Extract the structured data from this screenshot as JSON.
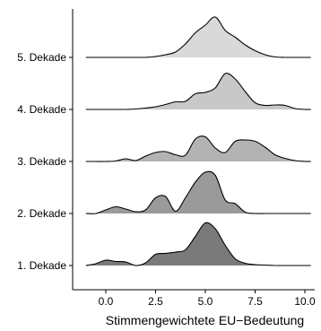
{
  "chart_data": {
    "type": "ridgeline",
    "xlabel": "Stimmengewichtete EU−Bedeutung",
    "ylabel": "",
    "xlim": [
      -1.0,
      10.5
    ],
    "x_ticks": [
      0.0,
      2.5,
      5.0,
      7.5,
      10.0
    ],
    "x_tick_labels": [
      "0.0",
      "2.5",
      "5.0",
      "7.5",
      "10.0"
    ],
    "categories": [
      "1. Dekade",
      "2. Dekade",
      "3. Dekade",
      "4. Dekade",
      "5. Dekade"
    ],
    "series": [
      {
        "name": "1. Dekade",
        "fill": "#7a7a7a",
        "x": [
          -1.0,
          -0.5,
          0.0,
          0.5,
          1.0,
          1.5,
          2.0,
          2.5,
          3.0,
          3.5,
          4.0,
          4.5,
          5.0,
          5.5,
          6.0,
          6.5,
          7.0,
          7.5,
          8.0,
          8.5
        ],
        "density": [
          0.0,
          0.04,
          0.12,
          0.09,
          0.08,
          0.0,
          0.06,
          0.25,
          0.27,
          0.3,
          0.35,
          0.65,
          0.95,
          0.82,
          0.45,
          0.15,
          0.05,
          0.02,
          0.01,
          0.0
        ]
      },
      {
        "name": "2. Dekade",
        "fill": "#9a9a9a",
        "x": [
          -1.0,
          -0.5,
          0.0,
          0.5,
          1.0,
          1.5,
          2.0,
          2.5,
          3.0,
          3.5,
          4.0,
          4.5,
          5.0,
          5.5,
          6.0,
          6.5,
          7.0,
          7.5,
          8.0,
          8.5
        ],
        "density": [
          0.0,
          0.0,
          0.08,
          0.15,
          0.1,
          0.04,
          0.08,
          0.35,
          0.38,
          0.05,
          0.35,
          0.7,
          0.92,
          0.85,
          0.3,
          0.22,
          0.03,
          0.0,
          0.0,
          0.0
        ]
      },
      {
        "name": "3. Dekade",
        "fill": "#b3b3b3",
        "x": [
          -1.0,
          -0.5,
          0.0,
          0.5,
          1.0,
          1.5,
          2.0,
          2.5,
          3.0,
          3.5,
          4.0,
          4.5,
          5.0,
          5.5,
          6.0,
          6.5,
          7.0,
          7.5,
          8.0,
          8.5,
          9.0,
          9.5,
          10.0
        ],
        "density": [
          0.0,
          0.0,
          0.0,
          0.01,
          0.06,
          0.02,
          0.12,
          0.2,
          0.22,
          0.15,
          0.14,
          0.5,
          0.55,
          0.3,
          0.2,
          0.45,
          0.48,
          0.45,
          0.32,
          0.15,
          0.07,
          0.02,
          0.0
        ]
      },
      {
        "name": "4. Dekade",
        "fill": "#c8c8c8",
        "x": [
          1.0,
          1.5,
          2.0,
          2.5,
          3.0,
          3.5,
          4.0,
          4.5,
          5.0,
          5.5,
          6.0,
          6.5,
          7.0,
          7.5,
          8.0,
          8.5,
          9.0,
          9.5,
          10.0
        ],
        "density": [
          0.0,
          0.01,
          0.03,
          0.06,
          0.11,
          0.17,
          0.18,
          0.35,
          0.38,
          0.48,
          0.8,
          0.68,
          0.4,
          0.15,
          0.09,
          0.1,
          0.09,
          0.02,
          0.0
        ]
      },
      {
        "name": "5. Dekade",
        "fill": "#d9d9d9",
        "x": [
          2.0,
          2.5,
          3.0,
          3.5,
          4.0,
          4.5,
          5.0,
          5.5,
          6.0,
          6.5,
          7.0,
          7.5,
          8.0,
          8.5,
          9.0
        ],
        "density": [
          0.0,
          0.02,
          0.06,
          0.12,
          0.3,
          0.55,
          0.72,
          0.9,
          0.6,
          0.45,
          0.28,
          0.15,
          0.06,
          0.01,
          0.0
        ]
      }
    ]
  }
}
